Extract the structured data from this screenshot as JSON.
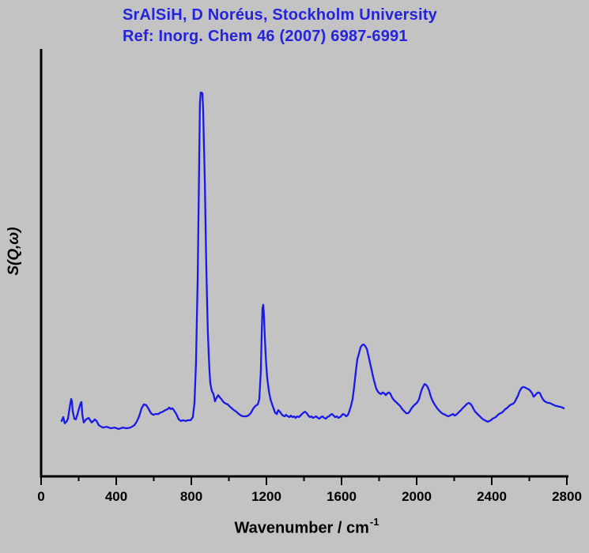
{
  "header": {
    "title_line1": "SrAlSiH, D Noréus, Stockholm University",
    "title_line2": "Ref: Inorg. Chem 46 (2007) 6987-6991",
    "title_color": "#2424dd"
  },
  "chart_data": {
    "type": "line",
    "title": "SrAlSiH, D Noréus, Stockholm University",
    "subtitle": "Ref: Inorg. Chem 46 (2007) 6987-6991",
    "xlabel_base": "Wavenumber / cm",
    "xlabel_sup": "-1",
    "xlabel": "Wavenumber / cm^-1",
    "ylabel": "S(Q,ω)",
    "xlim": [
      0,
      2800
    ],
    "ylim": [
      0,
      1.05
    ],
    "y_units": "arbitrary (no y ticks shown)",
    "grid": "off",
    "legend": "none",
    "x_major_ticks": [
      0,
      400,
      800,
      1200,
      1600,
      2000,
      2400,
      2800
    ],
    "x_minor_ticks": [
      200,
      600,
      1000,
      1400,
      1800,
      2200,
      2600
    ],
    "line_color": "#1a1ae8",
    "axis_color": "#000000",
    "background_color": "#c3c3c3",
    "peak_positions_cm-1": [
      160,
      215,
      560,
      855,
      1180,
      1718,
      2042,
      2278,
      2565
    ],
    "series": [
      {
        "name": "S(Q,w) spectrum",
        "points": [
          [
            109,
            0.144
          ],
          [
            118,
            0.154
          ],
          [
            126,
            0.138
          ],
          [
            135,
            0.142
          ],
          [
            143,
            0.15
          ],
          [
            152,
            0.179
          ],
          [
            160,
            0.201
          ],
          [
            164,
            0.195
          ],
          [
            168,
            0.17
          ],
          [
            177,
            0.15
          ],
          [
            185,
            0.148
          ],
          [
            194,
            0.162
          ],
          [
            202,
            0.177
          ],
          [
            211,
            0.191
          ],
          [
            215,
            0.193
          ],
          [
            219,
            0.162
          ],
          [
            227,
            0.14
          ],
          [
            236,
            0.146
          ],
          [
            244,
            0.15
          ],
          [
            253,
            0.152
          ],
          [
            261,
            0.146
          ],
          [
            269,
            0.14
          ],
          [
            278,
            0.144
          ],
          [
            286,
            0.148
          ],
          [
            295,
            0.144
          ],
          [
            307,
            0.133
          ],
          [
            328,
            0.127
          ],
          [
            349,
            0.129
          ],
          [
            370,
            0.125
          ],
          [
            392,
            0.127
          ],
          [
            413,
            0.123
          ],
          [
            434,
            0.127
          ],
          [
            455,
            0.125
          ],
          [
            476,
            0.127
          ],
          [
            497,
            0.133
          ],
          [
            509,
            0.142
          ],
          [
            522,
            0.156
          ],
          [
            535,
            0.177
          ],
          [
            547,
            0.187
          ],
          [
            560,
            0.185
          ],
          [
            573,
            0.175
          ],
          [
            585,
            0.164
          ],
          [
            598,
            0.16
          ],
          [
            610,
            0.162
          ],
          [
            623,
            0.162
          ],
          [
            636,
            0.166
          ],
          [
            648,
            0.168
          ],
          [
            661,
            0.172
          ],
          [
            674,
            0.175
          ],
          [
            682,
            0.179
          ],
          [
            690,
            0.175
          ],
          [
            699,
            0.177
          ],
          [
            707,
            0.172
          ],
          [
            720,
            0.162
          ],
          [
            733,
            0.148
          ],
          [
            745,
            0.144
          ],
          [
            758,
            0.146
          ],
          [
            770,
            0.144
          ],
          [
            783,
            0.146
          ],
          [
            796,
            0.146
          ],
          [
            808,
            0.154
          ],
          [
            817,
            0.191
          ],
          [
            825,
            0.294
          ],
          [
            834,
            0.52
          ],
          [
            842,
            0.827
          ],
          [
            846,
            0.971
          ],
          [
            850,
            0.998
          ],
          [
            859,
            0.996
          ],
          [
            863,
            0.951
          ],
          [
            867,
            0.868
          ],
          [
            872,
            0.766
          ],
          [
            876,
            0.643
          ],
          [
            880,
            0.54
          ],
          [
            884,
            0.458
          ],
          [
            888,
            0.376
          ],
          [
            893,
            0.314
          ],
          [
            897,
            0.273
          ],
          [
            901,
            0.242
          ],
          [
            909,
            0.222
          ],
          [
            918,
            0.214
          ],
          [
            926,
            0.195
          ],
          [
            935,
            0.205
          ],
          [
            943,
            0.211
          ],
          [
            952,
            0.205
          ],
          [
            960,
            0.201
          ],
          [
            968,
            0.195
          ],
          [
            977,
            0.191
          ],
          [
            985,
            0.189
          ],
          [
            994,
            0.187
          ],
          [
            1002,
            0.183
          ],
          [
            1015,
            0.177
          ],
          [
            1027,
            0.172
          ],
          [
            1040,
            0.168
          ],
          [
            1053,
            0.162
          ],
          [
            1065,
            0.158
          ],
          [
            1078,
            0.156
          ],
          [
            1090,
            0.156
          ],
          [
            1103,
            0.158
          ],
          [
            1116,
            0.164
          ],
          [
            1128,
            0.175
          ],
          [
            1141,
            0.183
          ],
          [
            1154,
            0.187
          ],
          [
            1162,
            0.201
          ],
          [
            1170,
            0.273
          ],
          [
            1175,
            0.376
          ],
          [
            1179,
            0.437
          ],
          [
            1183,
            0.446
          ],
          [
            1187,
            0.417
          ],
          [
            1192,
            0.355
          ],
          [
            1196,
            0.314
          ],
          [
            1200,
            0.283
          ],
          [
            1204,
            0.257
          ],
          [
            1213,
            0.222
          ],
          [
            1221,
            0.201
          ],
          [
            1229,
            0.189
          ],
          [
            1238,
            0.177
          ],
          [
            1246,
            0.166
          ],
          [
            1255,
            0.162
          ],
          [
            1263,
            0.172
          ],
          [
            1272,
            0.168
          ],
          [
            1280,
            0.162
          ],
          [
            1288,
            0.158
          ],
          [
            1297,
            0.156
          ],
          [
            1305,
            0.16
          ],
          [
            1314,
            0.156
          ],
          [
            1322,
            0.154
          ],
          [
            1330,
            0.158
          ],
          [
            1339,
            0.154
          ],
          [
            1347,
            0.156
          ],
          [
            1356,
            0.152
          ],
          [
            1364,
            0.156
          ],
          [
            1373,
            0.154
          ],
          [
            1381,
            0.158
          ],
          [
            1389,
            0.162
          ],
          [
            1398,
            0.166
          ],
          [
            1406,
            0.168
          ],
          [
            1415,
            0.164
          ],
          [
            1423,
            0.158
          ],
          [
            1432,
            0.154
          ],
          [
            1440,
            0.156
          ],
          [
            1448,
            0.152
          ],
          [
            1457,
            0.154
          ],
          [
            1465,
            0.156
          ],
          [
            1474,
            0.152
          ],
          [
            1482,
            0.15
          ],
          [
            1490,
            0.154
          ],
          [
            1499,
            0.156
          ],
          [
            1507,
            0.152
          ],
          [
            1516,
            0.15
          ],
          [
            1524,
            0.154
          ],
          [
            1533,
            0.156
          ],
          [
            1541,
            0.16
          ],
          [
            1549,
            0.162
          ],
          [
            1558,
            0.158
          ],
          [
            1566,
            0.154
          ],
          [
            1575,
            0.156
          ],
          [
            1583,
            0.152
          ],
          [
            1592,
            0.154
          ],
          [
            1600,
            0.158
          ],
          [
            1608,
            0.162
          ],
          [
            1617,
            0.16
          ],
          [
            1625,
            0.156
          ],
          [
            1634,
            0.16
          ],
          [
            1642,
            0.17
          ],
          [
            1650,
            0.183
          ],
          [
            1659,
            0.201
          ],
          [
            1667,
            0.232
          ],
          [
            1676,
            0.273
          ],
          [
            1684,
            0.304
          ],
          [
            1693,
            0.32
          ],
          [
            1701,
            0.335
          ],
          [
            1709,
            0.341
          ],
          [
            1718,
            0.343
          ],
          [
            1726,
            0.339
          ],
          [
            1735,
            0.331
          ],
          [
            1743,
            0.314
          ],
          [
            1752,
            0.294
          ],
          [
            1760,
            0.277
          ],
          [
            1768,
            0.259
          ],
          [
            1777,
            0.242
          ],
          [
            1785,
            0.228
          ],
          [
            1794,
            0.22
          ],
          [
            1802,
            0.216
          ],
          [
            1810,
            0.214
          ],
          [
            1819,
            0.218
          ],
          [
            1827,
            0.216
          ],
          [
            1836,
            0.211
          ],
          [
            1844,
            0.216
          ],
          [
            1853,
            0.218
          ],
          [
            1861,
            0.214
          ],
          [
            1869,
            0.205
          ],
          [
            1878,
            0.199
          ],
          [
            1886,
            0.195
          ],
          [
            1895,
            0.191
          ],
          [
            1903,
            0.187
          ],
          [
            1912,
            0.183
          ],
          [
            1920,
            0.177
          ],
          [
            1928,
            0.172
          ],
          [
            1937,
            0.168
          ],
          [
            1945,
            0.164
          ],
          [
            1954,
            0.164
          ],
          [
            1962,
            0.168
          ],
          [
            1970,
            0.175
          ],
          [
            1979,
            0.181
          ],
          [
            1987,
            0.185
          ],
          [
            1996,
            0.189
          ],
          [
            2004,
            0.193
          ],
          [
            2013,
            0.201
          ],
          [
            2021,
            0.216
          ],
          [
            2029,
            0.228
          ],
          [
            2038,
            0.236
          ],
          [
            2042,
            0.24
          ],
          [
            2050,
            0.238
          ],
          [
            2059,
            0.232
          ],
          [
            2067,
            0.222
          ],
          [
            2076,
            0.207
          ],
          [
            2084,
            0.197
          ],
          [
            2093,
            0.189
          ],
          [
            2101,
            0.183
          ],
          [
            2109,
            0.177
          ],
          [
            2118,
            0.172
          ],
          [
            2126,
            0.168
          ],
          [
            2135,
            0.164
          ],
          [
            2143,
            0.162
          ],
          [
            2152,
            0.16
          ],
          [
            2160,
            0.158
          ],
          [
            2168,
            0.156
          ],
          [
            2177,
            0.158
          ],
          [
            2185,
            0.16
          ],
          [
            2194,
            0.162
          ],
          [
            2202,
            0.158
          ],
          [
            2210,
            0.16
          ],
          [
            2219,
            0.164
          ],
          [
            2227,
            0.168
          ],
          [
            2236,
            0.172
          ],
          [
            2244,
            0.177
          ],
          [
            2253,
            0.181
          ],
          [
            2261,
            0.185
          ],
          [
            2269,
            0.189
          ],
          [
            2278,
            0.191
          ],
          [
            2286,
            0.189
          ],
          [
            2295,
            0.183
          ],
          [
            2303,
            0.175
          ],
          [
            2312,
            0.168
          ],
          [
            2320,
            0.164
          ],
          [
            2328,
            0.16
          ],
          [
            2337,
            0.156
          ],
          [
            2345,
            0.152
          ],
          [
            2354,
            0.148
          ],
          [
            2362,
            0.146
          ],
          [
            2370,
            0.144
          ],
          [
            2379,
            0.142
          ],
          [
            2387,
            0.144
          ],
          [
            2396,
            0.146
          ],
          [
            2404,
            0.15
          ],
          [
            2413,
            0.152
          ],
          [
            2421,
            0.154
          ],
          [
            2429,
            0.158
          ],
          [
            2438,
            0.162
          ],
          [
            2446,
            0.164
          ],
          [
            2455,
            0.166
          ],
          [
            2463,
            0.17
          ],
          [
            2472,
            0.175
          ],
          [
            2480,
            0.177
          ],
          [
            2488,
            0.181
          ],
          [
            2497,
            0.185
          ],
          [
            2505,
            0.187
          ],
          [
            2514,
            0.189
          ],
          [
            2522,
            0.193
          ],
          [
            2530,
            0.201
          ],
          [
            2539,
            0.209
          ],
          [
            2547,
            0.22
          ],
          [
            2556,
            0.228
          ],
          [
            2564,
            0.232
          ],
          [
            2573,
            0.232
          ],
          [
            2581,
            0.23
          ],
          [
            2589,
            0.228
          ],
          [
            2598,
            0.226
          ],
          [
            2606,
            0.222
          ],
          [
            2615,
            0.216
          ],
          [
            2623,
            0.207
          ],
          [
            2632,
            0.211
          ],
          [
            2640,
            0.216
          ],
          [
            2648,
            0.218
          ],
          [
            2657,
            0.216
          ],
          [
            2665,
            0.207
          ],
          [
            2674,
            0.199
          ],
          [
            2682,
            0.195
          ],
          [
            2690,
            0.193
          ],
          [
            2699,
            0.191
          ],
          [
            2707,
            0.191
          ],
          [
            2716,
            0.189
          ],
          [
            2724,
            0.187
          ],
          [
            2733,
            0.185
          ],
          [
            2741,
            0.183
          ],
          [
            2749,
            0.183
          ],
          [
            2758,
            0.181
          ],
          [
            2766,
            0.181
          ],
          [
            2775,
            0.179
          ],
          [
            2783,
            0.177
          ]
        ]
      }
    ]
  }
}
